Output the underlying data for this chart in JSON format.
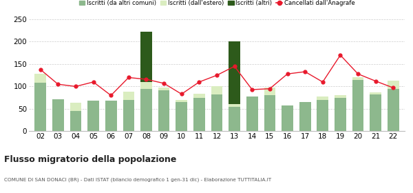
{
  "years": [
    "02",
    "03",
    "04",
    "05",
    "06",
    "07",
    "08",
    "09",
    "10",
    "11",
    "12",
    "13",
    "14",
    "15",
    "16",
    "17",
    "18",
    "19",
    "20",
    "21",
    "22"
  ],
  "iscritti_altri_comuni": [
    108,
    72,
    45,
    68,
    68,
    70,
    95,
    92,
    65,
    75,
    82,
    55,
    78,
    80,
    57,
    65,
    70,
    75,
    115,
    82,
    95
  ],
  "iscritti_estero": [
    20,
    0,
    18,
    0,
    0,
    18,
    15,
    5,
    5,
    8,
    18,
    5,
    0,
    17,
    0,
    0,
    8,
    5,
    5,
    5,
    18
  ],
  "iscritti_altri": [
    0,
    0,
    0,
    0,
    0,
    0,
    112,
    0,
    0,
    0,
    0,
    140,
    0,
    0,
    0,
    0,
    0,
    0,
    0,
    0,
    0
  ],
  "cancellati": [
    138,
    105,
    100,
    110,
    80,
    120,
    116,
    107,
    83,
    110,
    125,
    145,
    93,
    95,
    128,
    133,
    110,
    170,
    128,
    112,
    97
  ],
  "color_altri_comuni": "#8db88d",
  "color_estero": "#daedc0",
  "color_altri": "#2d5a1b",
  "color_cancellati": "#e8192c",
  "title": "Flusso migratorio della popolazione",
  "subtitle": "COMUNE DI SAN DONACI (BR) - Dati ISTAT (bilancio demografico 1 gen-31 dic) - Elaborazione TUTTITALIA.IT",
  "legend_labels": [
    "Iscritti (da altri comuni)",
    "Iscritti (dall'estero)",
    "Iscritti (altri)",
    "Cancellati dall'Anagrafe"
  ],
  "ylim": [
    0,
    250
  ],
  "yticks": [
    0,
    50,
    100,
    150,
    200,
    250
  ]
}
